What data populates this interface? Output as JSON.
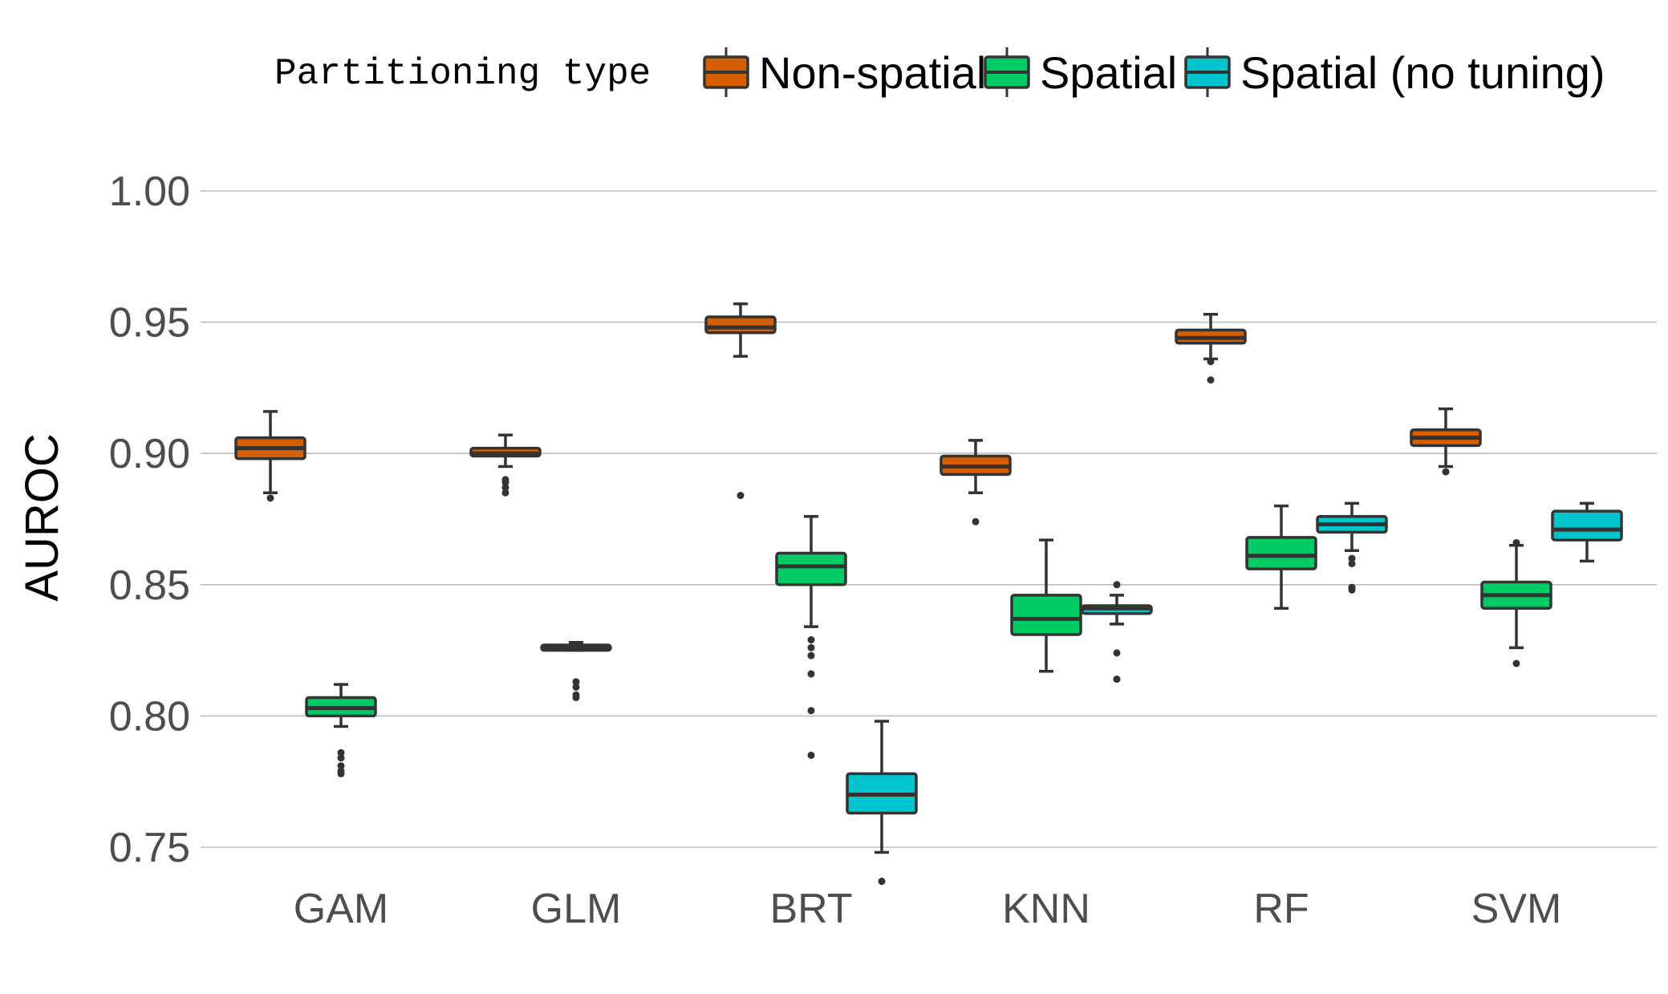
{
  "chart_data": {
    "type": "boxplot",
    "ylabel": "AUROC",
    "ylim": [
      0.735,
      1.005
    ],
    "yticks": [
      "0.75",
      "0.80",
      "0.85",
      "0.90",
      "0.95",
      "1.00"
    ],
    "grid": true,
    "legend": {
      "title": "Partitioning type",
      "position": "top",
      "entries": [
        "Non-spatial",
        "Spatial",
        "Spatial (no tuning)"
      ]
    },
    "categories": [
      "GAM",
      "GLM",
      "BRT",
      "KNN",
      "RF",
      "SVM"
    ],
    "series": [
      {
        "name": "Non-spatial",
        "color": "#d55e00",
        "boxes": [
          {
            "category": "GAM",
            "whisker_low": 0.885,
            "q1": 0.898,
            "median": 0.902,
            "q3": 0.906,
            "whisker_high": 0.916,
            "outliers": [
              0.883
            ]
          },
          {
            "category": "GLM",
            "whisker_low": 0.895,
            "q1": 0.899,
            "median": 0.9,
            "q3": 0.902,
            "whisker_high": 0.907,
            "outliers": [
              0.885,
              0.887,
              0.889,
              0.89
            ]
          },
          {
            "category": "BRT",
            "whisker_low": 0.937,
            "q1": 0.946,
            "median": 0.948,
            "q3": 0.952,
            "whisker_high": 0.957,
            "outliers": [
              0.884
            ]
          },
          {
            "category": "KNN",
            "whisker_low": 0.885,
            "q1": 0.892,
            "median": 0.895,
            "q3": 0.899,
            "whisker_high": 0.905,
            "outliers": [
              0.874
            ]
          },
          {
            "category": "RF",
            "whisker_low": 0.936,
            "q1": 0.942,
            "median": 0.944,
            "q3": 0.947,
            "whisker_high": 0.953,
            "outliers": [
              0.928,
              0.935
            ]
          },
          {
            "category": "SVM",
            "whisker_low": 0.895,
            "q1": 0.903,
            "median": 0.906,
            "q3": 0.909,
            "whisker_high": 0.917,
            "outliers": [
              0.893
            ]
          }
        ]
      },
      {
        "name": "Spatial",
        "color": "#00cc66",
        "boxes": [
          {
            "category": "GAM",
            "whisker_low": 0.796,
            "q1": 0.8,
            "median": 0.803,
            "q3": 0.807,
            "whisker_high": 0.812,
            "outliers": [
              0.778,
              0.779,
              0.781,
              0.784,
              0.786
            ]
          },
          {
            "category": "GLM",
            "whisker_low": 0.825,
            "q1": 0.825,
            "median": 0.826,
            "q3": 0.827,
            "whisker_high": 0.828,
            "outliers": [
              0.807,
              0.808,
              0.811,
              0.813
            ]
          },
          {
            "category": "BRT",
            "whisker_low": 0.834,
            "q1": 0.85,
            "median": 0.857,
            "q3": 0.862,
            "whisker_high": 0.876,
            "outliers": [
              0.829,
              0.826,
              0.823,
              0.816,
              0.802,
              0.785
            ]
          },
          {
            "category": "KNN",
            "whisker_low": 0.817,
            "q1": 0.831,
            "median": 0.837,
            "q3": 0.846,
            "whisker_high": 0.867,
            "outliers": []
          },
          {
            "category": "RF",
            "whisker_low": 0.841,
            "q1": 0.856,
            "median": 0.861,
            "q3": 0.868,
            "whisker_high": 0.88,
            "outliers": []
          },
          {
            "category": "SVM",
            "whisker_low": 0.826,
            "q1": 0.841,
            "median": 0.846,
            "q3": 0.851,
            "whisker_high": 0.865,
            "outliers": [
              0.82,
              0.866
            ]
          }
        ]
      },
      {
        "name": "Spatial (no tuning)",
        "color": "#00c5cd",
        "boxes": [
          {
            "category": "BRT",
            "whisker_low": 0.748,
            "q1": 0.763,
            "median": 0.77,
            "q3": 0.778,
            "whisker_high": 0.798,
            "outliers": [
              0.737
            ]
          },
          {
            "category": "KNN",
            "whisker_low": 0.835,
            "q1": 0.839,
            "median": 0.841,
            "q3": 0.842,
            "whisker_high": 0.846,
            "outliers": [
              0.85,
              0.824,
              0.814
            ]
          },
          {
            "category": "RF",
            "whisker_low": 0.863,
            "q1": 0.87,
            "median": 0.873,
            "q3": 0.876,
            "whisker_high": 0.881,
            "outliers": [
              0.858,
              0.86,
              0.849,
              0.848
            ]
          },
          {
            "category": "SVM",
            "whisker_low": 0.859,
            "q1": 0.867,
            "median": 0.871,
            "q3": 0.878,
            "whisker_high": 0.881,
            "outliers": []
          }
        ]
      }
    ]
  }
}
